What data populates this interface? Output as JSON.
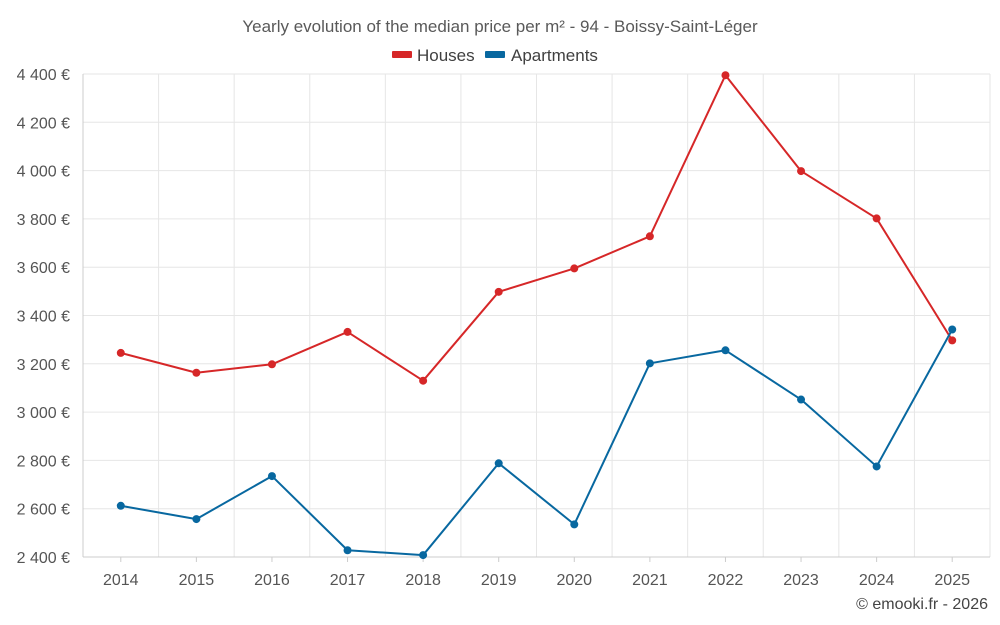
{
  "chart_data": {
    "type": "line",
    "title": "Yearly evolution of the median price per m² - 94 - Boissy-Saint-Léger",
    "xlabel": "",
    "ylabel": "",
    "categories": [
      "2014",
      "2015",
      "2016",
      "2017",
      "2018",
      "2019",
      "2020",
      "2021",
      "2022",
      "2023",
      "2024",
      "2025"
    ],
    "ylim": [
      2400,
      4400
    ],
    "yticks": [
      2400,
      2600,
      2800,
      3000,
      3200,
      3400,
      3600,
      3800,
      4000,
      4200,
      4400
    ],
    "ytick_labels": [
      "2 400 €",
      "2 600 €",
      "2 800 €",
      "3 000 €",
      "3 200 €",
      "3 400 €",
      "3 600 €",
      "3 800 €",
      "4 000 €",
      "4 200 €",
      "4 400 €"
    ],
    "grid": true,
    "legend_position": "top-center",
    "series": [
      {
        "name": "Houses",
        "color": "#d62728",
        "values": [
          3245,
          3163,
          3198,
          3332,
          3130,
          3498,
          3595,
          3728,
          4395,
          3998,
          3802,
          3297
        ]
      },
      {
        "name": "Apartments",
        "color": "#0868a0",
        "values": [
          2612,
          2557,
          2735,
          2428,
          2408,
          2788,
          2535,
          3202,
          3256,
          3052,
          2775,
          3342
        ]
      }
    ]
  },
  "credit": "© emooki.fr - 2026"
}
